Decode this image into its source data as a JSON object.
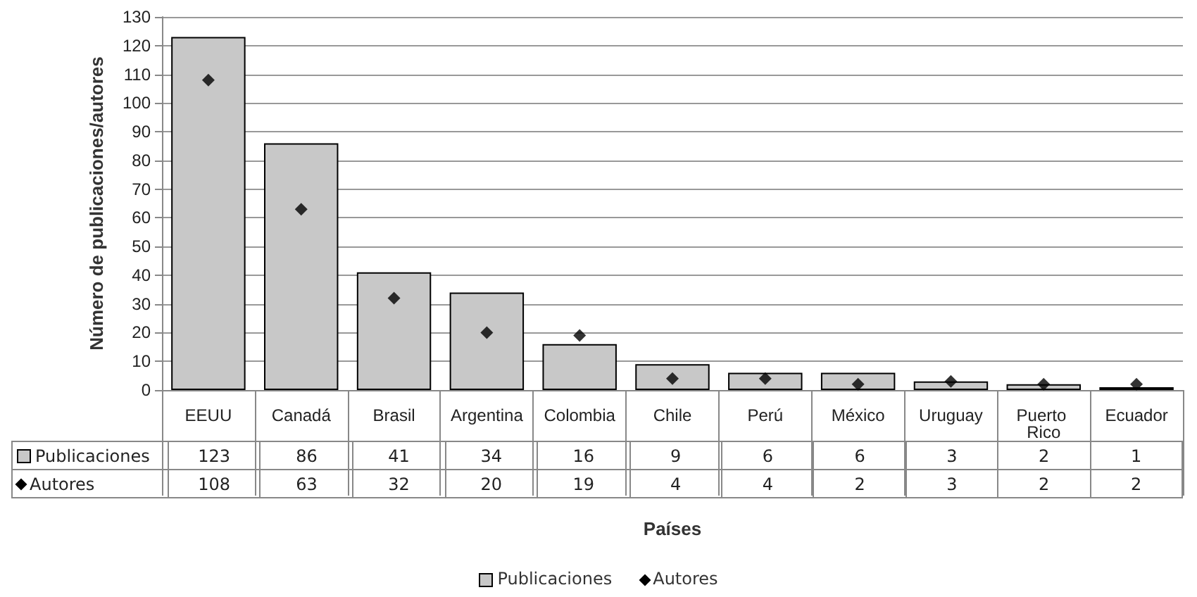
{
  "chart_data": {
    "type": "bar",
    "xlabel": "Países",
    "ylabel": "Número de publicaciones/autores",
    "categories": [
      "EEUU",
      "Canadá",
      "Brasil",
      "Argentina",
      "Colombia",
      "Chile",
      "Perú",
      "México",
      "Uruguay",
      "Puerto Rico",
      "Ecuador"
    ],
    "series": [
      {
        "name": "Publicaciones",
        "type": "bar",
        "color": "#c8c8c8",
        "values": [
          123,
          86,
          41,
          34,
          16,
          9,
          6,
          6,
          3,
          2,
          1
        ]
      },
      {
        "name": "Autores",
        "type": "scatter",
        "color": "#000000",
        "values": [
          108,
          63,
          32,
          20,
          19,
          4,
          4,
          2,
          3,
          2,
          2
        ]
      }
    ],
    "ylim": [
      0,
      130
    ],
    "yticks": [
      0,
      10,
      20,
      30,
      40,
      50,
      60,
      70,
      80,
      90,
      100,
      110,
      120,
      130
    ],
    "grid": "y",
    "legend": "bottom",
    "marker": "diamond",
    "data_labels": true
  }
}
